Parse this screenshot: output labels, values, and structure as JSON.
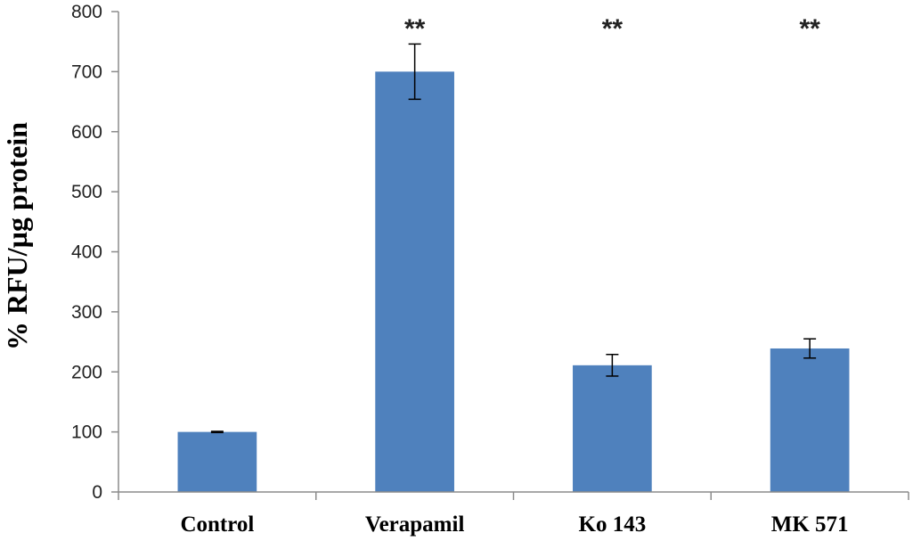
{
  "chart_data": {
    "type": "bar",
    "title": "",
    "xlabel": "",
    "ylabel": "% RFU/µg protein",
    "ylim": [
      0,
      800
    ],
    "yticks": [
      0,
      100,
      200,
      300,
      400,
      500,
      600,
      700,
      800
    ],
    "grid": false,
    "categories": [
      "Control",
      "Verapamil",
      "Ko 143",
      "MK 571"
    ],
    "values": [
      100,
      700,
      211,
      239
    ],
    "error": [
      1,
      46,
      18,
      16
    ],
    "significance": [
      "",
      "**",
      "**",
      "**"
    ],
    "bar_color": "#4f81bd"
  }
}
